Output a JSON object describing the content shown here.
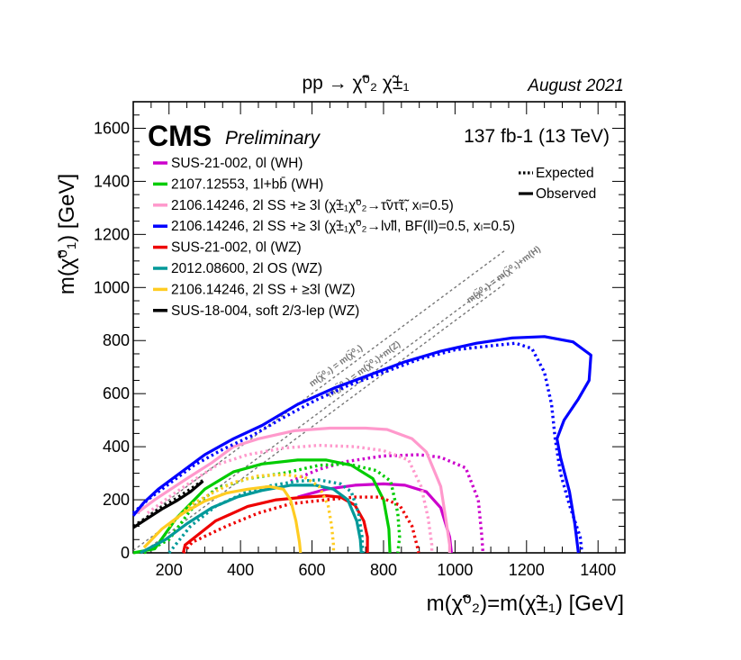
{
  "title": "pp → χ̃⁰₂ χ̃±₁",
  "date": "August 2021",
  "cms": "CMS",
  "preliminary": "Preliminary",
  "lumi_label": "137 fb-1 (13 TeV)",
  "chart_data": {
    "type": "line",
    "xlabel": "m(χ̃⁰₂)=m(χ̃±₁) [GeV]",
    "ylabel": "m(χ̃⁰₁) [GeV]",
    "xlim": [
      100,
      1475
    ],
    "ylim": [
      0,
      1700
    ],
    "xticks": [
      200,
      400,
      600,
      800,
      1000,
      1200,
      1400
    ],
    "yticks": [
      0,
      200,
      400,
      600,
      800,
      1000,
      1200,
      1400,
      1600
    ],
    "styles": [
      {
        "name": "Expected",
        "dash": "dotted"
      },
      {
        "name": "Observed",
        "dash": "solid"
      }
    ],
    "diagonals": [
      {
        "label": "m(χ̃⁰₂) = m(χ̃⁰₁)",
        "offset": 0
      },
      {
        "label": "m(χ̃⁰₂) = m(χ̃⁰₁)+m(Z)",
        "offset": 91
      },
      {
        "label": "m(χ̃⁰₂) = m(χ̃⁰₁)+m(H)",
        "offset": 125
      }
    ],
    "series": [
      {
        "name": "SUS-21-002, 0l (WH)",
        "color": "#cc00cc",
        "observed": [
          [
            560,
            210
          ],
          [
            640,
            240
          ],
          [
            720,
            255
          ],
          [
            800,
            260
          ],
          [
            860,
            255
          ],
          [
            920,
            230
          ],
          [
            960,
            170
          ],
          [
            985,
            60
          ],
          [
            990,
            0
          ]
        ],
        "expected": [
          [
            540,
            270
          ],
          [
            620,
            315
          ],
          [
            700,
            345
          ],
          [
            800,
            365
          ],
          [
            900,
            370
          ],
          [
            960,
            360
          ],
          [
            1030,
            320
          ],
          [
            1065,
            200
          ],
          [
            1075,
            60
          ],
          [
            1078,
            0
          ]
        ]
      },
      {
        "name": "2107.12553, 1l+bb̄ (WH)",
        "color": "#00cc00",
        "observed": [
          [
            100,
            0
          ],
          [
            160,
            15
          ],
          [
            220,
            130
          ],
          [
            300,
            240
          ],
          [
            380,
            305
          ],
          [
            460,
            335
          ],
          [
            560,
            350
          ],
          [
            640,
            350
          ],
          [
            710,
            330
          ],
          [
            770,
            280
          ],
          [
            800,
            200
          ],
          [
            815,
            90
          ],
          [
            818,
            0
          ]
        ],
        "expected": [
          [
            130,
            0
          ],
          [
            200,
            50
          ],
          [
            260,
            160
          ],
          [
            330,
            240
          ],
          [
            420,
            280
          ],
          [
            520,
            300
          ],
          [
            620,
            330
          ],
          [
            700,
            335
          ],
          [
            780,
            310
          ],
          [
            820,
            270
          ],
          [
            840,
            150
          ],
          [
            845,
            60
          ],
          [
            840,
            0
          ]
        ]
      },
      {
        "name": "2106.14246, 2l SS +≥ 3l (χ̃±₁χ̃⁰₂→τ̃ντ̃τ̃, xₗ=0.5)",
        "color": "#ff99cc",
        "observed": [
          [
            110,
            150
          ],
          [
            160,
            200
          ],
          [
            250,
            280
          ],
          [
            320,
            340
          ],
          [
            380,
            400
          ],
          [
            450,
            430
          ],
          [
            550,
            460
          ],
          [
            650,
            470
          ],
          [
            750,
            470
          ],
          [
            810,
            465
          ],
          [
            880,
            430
          ],
          [
            920,
            380
          ],
          [
            960,
            250
          ],
          [
            975,
            120
          ],
          [
            985,
            30
          ],
          [
            985,
            0
          ]
        ],
        "expected": [
          [
            140,
            150
          ],
          [
            200,
            210
          ],
          [
            270,
            275
          ],
          [
            340,
            335
          ],
          [
            420,
            370
          ],
          [
            520,
            395
          ],
          [
            620,
            405
          ],
          [
            720,
            400
          ],
          [
            800,
            385
          ],
          [
            870,
            350
          ],
          [
            905,
            250
          ],
          [
            925,
            130
          ],
          [
            935,
            30
          ],
          [
            935,
            0
          ]
        ]
      },
      {
        "name": "2106.14246, 2l SS +≥ 3l (χ̃±₁χ̃⁰₂→lν̃ll, BF(ll)=0.5, xₗ=0.5)",
        "color": "#0000ff",
        "observed": [
          [
            100,
            140
          ],
          [
            130,
            190
          ],
          [
            170,
            240
          ],
          [
            230,
            300
          ],
          [
            300,
            370
          ],
          [
            380,
            430
          ],
          [
            460,
            480
          ],
          [
            560,
            560
          ],
          [
            660,
            620
          ],
          [
            760,
            670
          ],
          [
            860,
            720
          ],
          [
            960,
            760
          ],
          [
            1060,
            790
          ],
          [
            1160,
            810
          ],
          [
            1250,
            815
          ],
          [
            1330,
            795
          ],
          [
            1380,
            745
          ],
          [
            1375,
            650
          ],
          [
            1345,
            580
          ],
          [
            1305,
            500
          ],
          [
            1285,
            430
          ],
          [
            1295,
            360
          ],
          [
            1320,
            230
          ],
          [
            1335,
            110
          ],
          [
            1345,
            0
          ]
        ],
        "expected": [
          [
            100,
            150
          ],
          [
            140,
            200
          ],
          [
            200,
            260
          ],
          [
            270,
            330
          ],
          [
            350,
            390
          ],
          [
            430,
            440
          ],
          [
            520,
            510
          ],
          [
            610,
            575
          ],
          [
            700,
            630
          ],
          [
            800,
            680
          ],
          [
            900,
            730
          ],
          [
            1000,
            765
          ],
          [
            1100,
            780
          ],
          [
            1170,
            790
          ],
          [
            1215,
            770
          ],
          [
            1250,
            680
          ],
          [
            1270,
            560
          ],
          [
            1280,
            430
          ],
          [
            1295,
            300
          ],
          [
            1320,
            180
          ],
          [
            1350,
            60
          ],
          [
            1355,
            0
          ]
        ]
      },
      {
        "name": "SUS-21-002, 0l (WZ)",
        "color": "#ee0000",
        "observed": [
          [
            240,
            0
          ],
          [
            245,
            30
          ],
          [
            330,
            120
          ],
          [
            420,
            175
          ],
          [
            500,
            200
          ],
          [
            580,
            210
          ],
          [
            640,
            215
          ],
          [
            680,
            210
          ],
          [
            720,
            180
          ],
          [
            745,
            120
          ],
          [
            755,
            60
          ],
          [
            755,
            0
          ]
        ],
        "expected": [
          [
            240,
            0
          ],
          [
            265,
            40
          ],
          [
            360,
            100
          ],
          [
            450,
            150
          ],
          [
            540,
            185
          ],
          [
            640,
            200
          ],
          [
            720,
            210
          ],
          [
            790,
            210
          ],
          [
            845,
            180
          ],
          [
            880,
            100
          ],
          [
            895,
            20
          ],
          [
            898,
            0
          ]
        ]
      },
      {
        "name": "2012.08600, 2l OS (WZ)",
        "color": "#009999",
        "observed": [
          [
            120,
            0
          ],
          [
            190,
            50
          ],
          [
            250,
            110
          ],
          [
            320,
            170
          ],
          [
            390,
            210
          ],
          [
            460,
            235
          ],
          [
            540,
            255
          ],
          [
            610,
            255
          ],
          [
            660,
            240
          ],
          [
            700,
            200
          ],
          [
            725,
            120
          ],
          [
            735,
            50
          ],
          [
            738,
            0
          ]
        ],
        "expected": [
          [
            200,
            0
          ],
          [
            260,
            100
          ],
          [
            330,
            175
          ],
          [
            410,
            225
          ],
          [
            490,
            255
          ],
          [
            560,
            270
          ],
          [
            620,
            275
          ],
          [
            680,
            260
          ],
          [
            710,
            230
          ],
          [
            730,
            150
          ],
          [
            740,
            60
          ],
          [
            742,
            0
          ]
        ]
      },
      {
        "name": "2106.14246, 2l SS + ≥3l (WZ)",
        "color": "#ffcc22",
        "observed": [
          [
            130,
            20
          ],
          [
            180,
            90
          ],
          [
            240,
            150
          ],
          [
            300,
            195
          ],
          [
            360,
            225
          ],
          [
            420,
            240
          ],
          [
            480,
            250
          ],
          [
            520,
            240
          ],
          [
            540,
            200
          ],
          [
            555,
            120
          ],
          [
            565,
            40
          ],
          [
            568,
            0
          ]
        ],
        "expected": [
          [
            200,
            100
          ],
          [
            260,
            180
          ],
          [
            320,
            225
          ],
          [
            380,
            265
          ],
          [
            450,
            290
          ],
          [
            520,
            295
          ],
          [
            580,
            285
          ],
          [
            620,
            250
          ],
          [
            645,
            180
          ],
          [
            655,
            100
          ],
          [
            660,
            30
          ],
          [
            660,
            0
          ]
        ]
      },
      {
        "name": "SUS-18-004, soft 2/3-lep (WZ)",
        "color": "#000000",
        "observed": [
          [
            100,
            95
          ],
          [
            140,
            130
          ],
          [
            180,
            165
          ],
          [
            220,
            195
          ],
          [
            260,
            230
          ],
          [
            295,
            270
          ]
        ],
        "expected": [
          [
            100,
            100
          ],
          [
            140,
            135
          ],
          [
            180,
            172
          ],
          [
            220,
            205
          ],
          [
            260,
            240
          ],
          [
            300,
            278
          ]
        ]
      }
    ]
  }
}
